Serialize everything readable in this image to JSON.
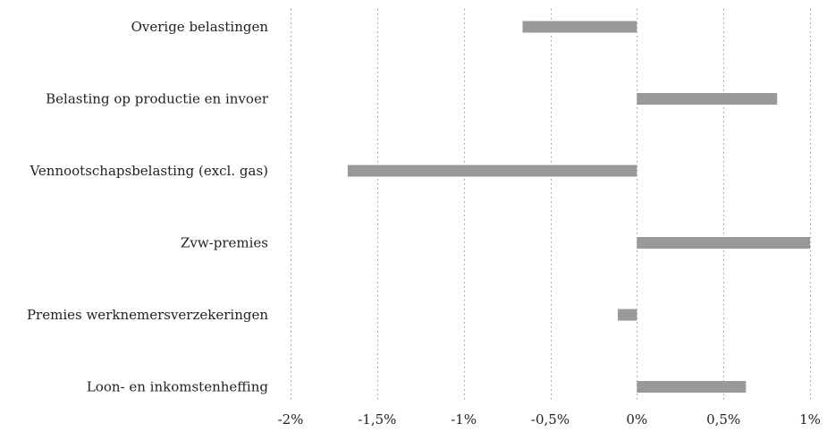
{
  "chart_data": {
    "type": "bar",
    "orientation": "horizontal",
    "title": "",
    "xlabel": "",
    "ylabel": "",
    "categories": [
      "Overige belastingen",
      "Belasting op productie en invoer",
      "Vennootschapsbelasting (excl. gas)",
      "Zvw-premies",
      "Premies werknemersverzekeringen",
      "Loon- en inkomstenheffing"
    ],
    "values": [
      -0.66,
      0.81,
      -1.67,
      1.0,
      -0.11,
      0.63
    ],
    "xlim": [
      -2,
      1
    ],
    "x_ticks": [
      -2,
      -1.5,
      -1,
      -0.5,
      0,
      0.5,
      1
    ],
    "x_tick_labels": [
      "-2%",
      "-1,5%",
      "-1%",
      "-0,5%",
      "0%",
      "0,5%",
      "1%"
    ],
    "grid": "vertical dotted",
    "bar_color": "#999999",
    "legend": "none"
  }
}
